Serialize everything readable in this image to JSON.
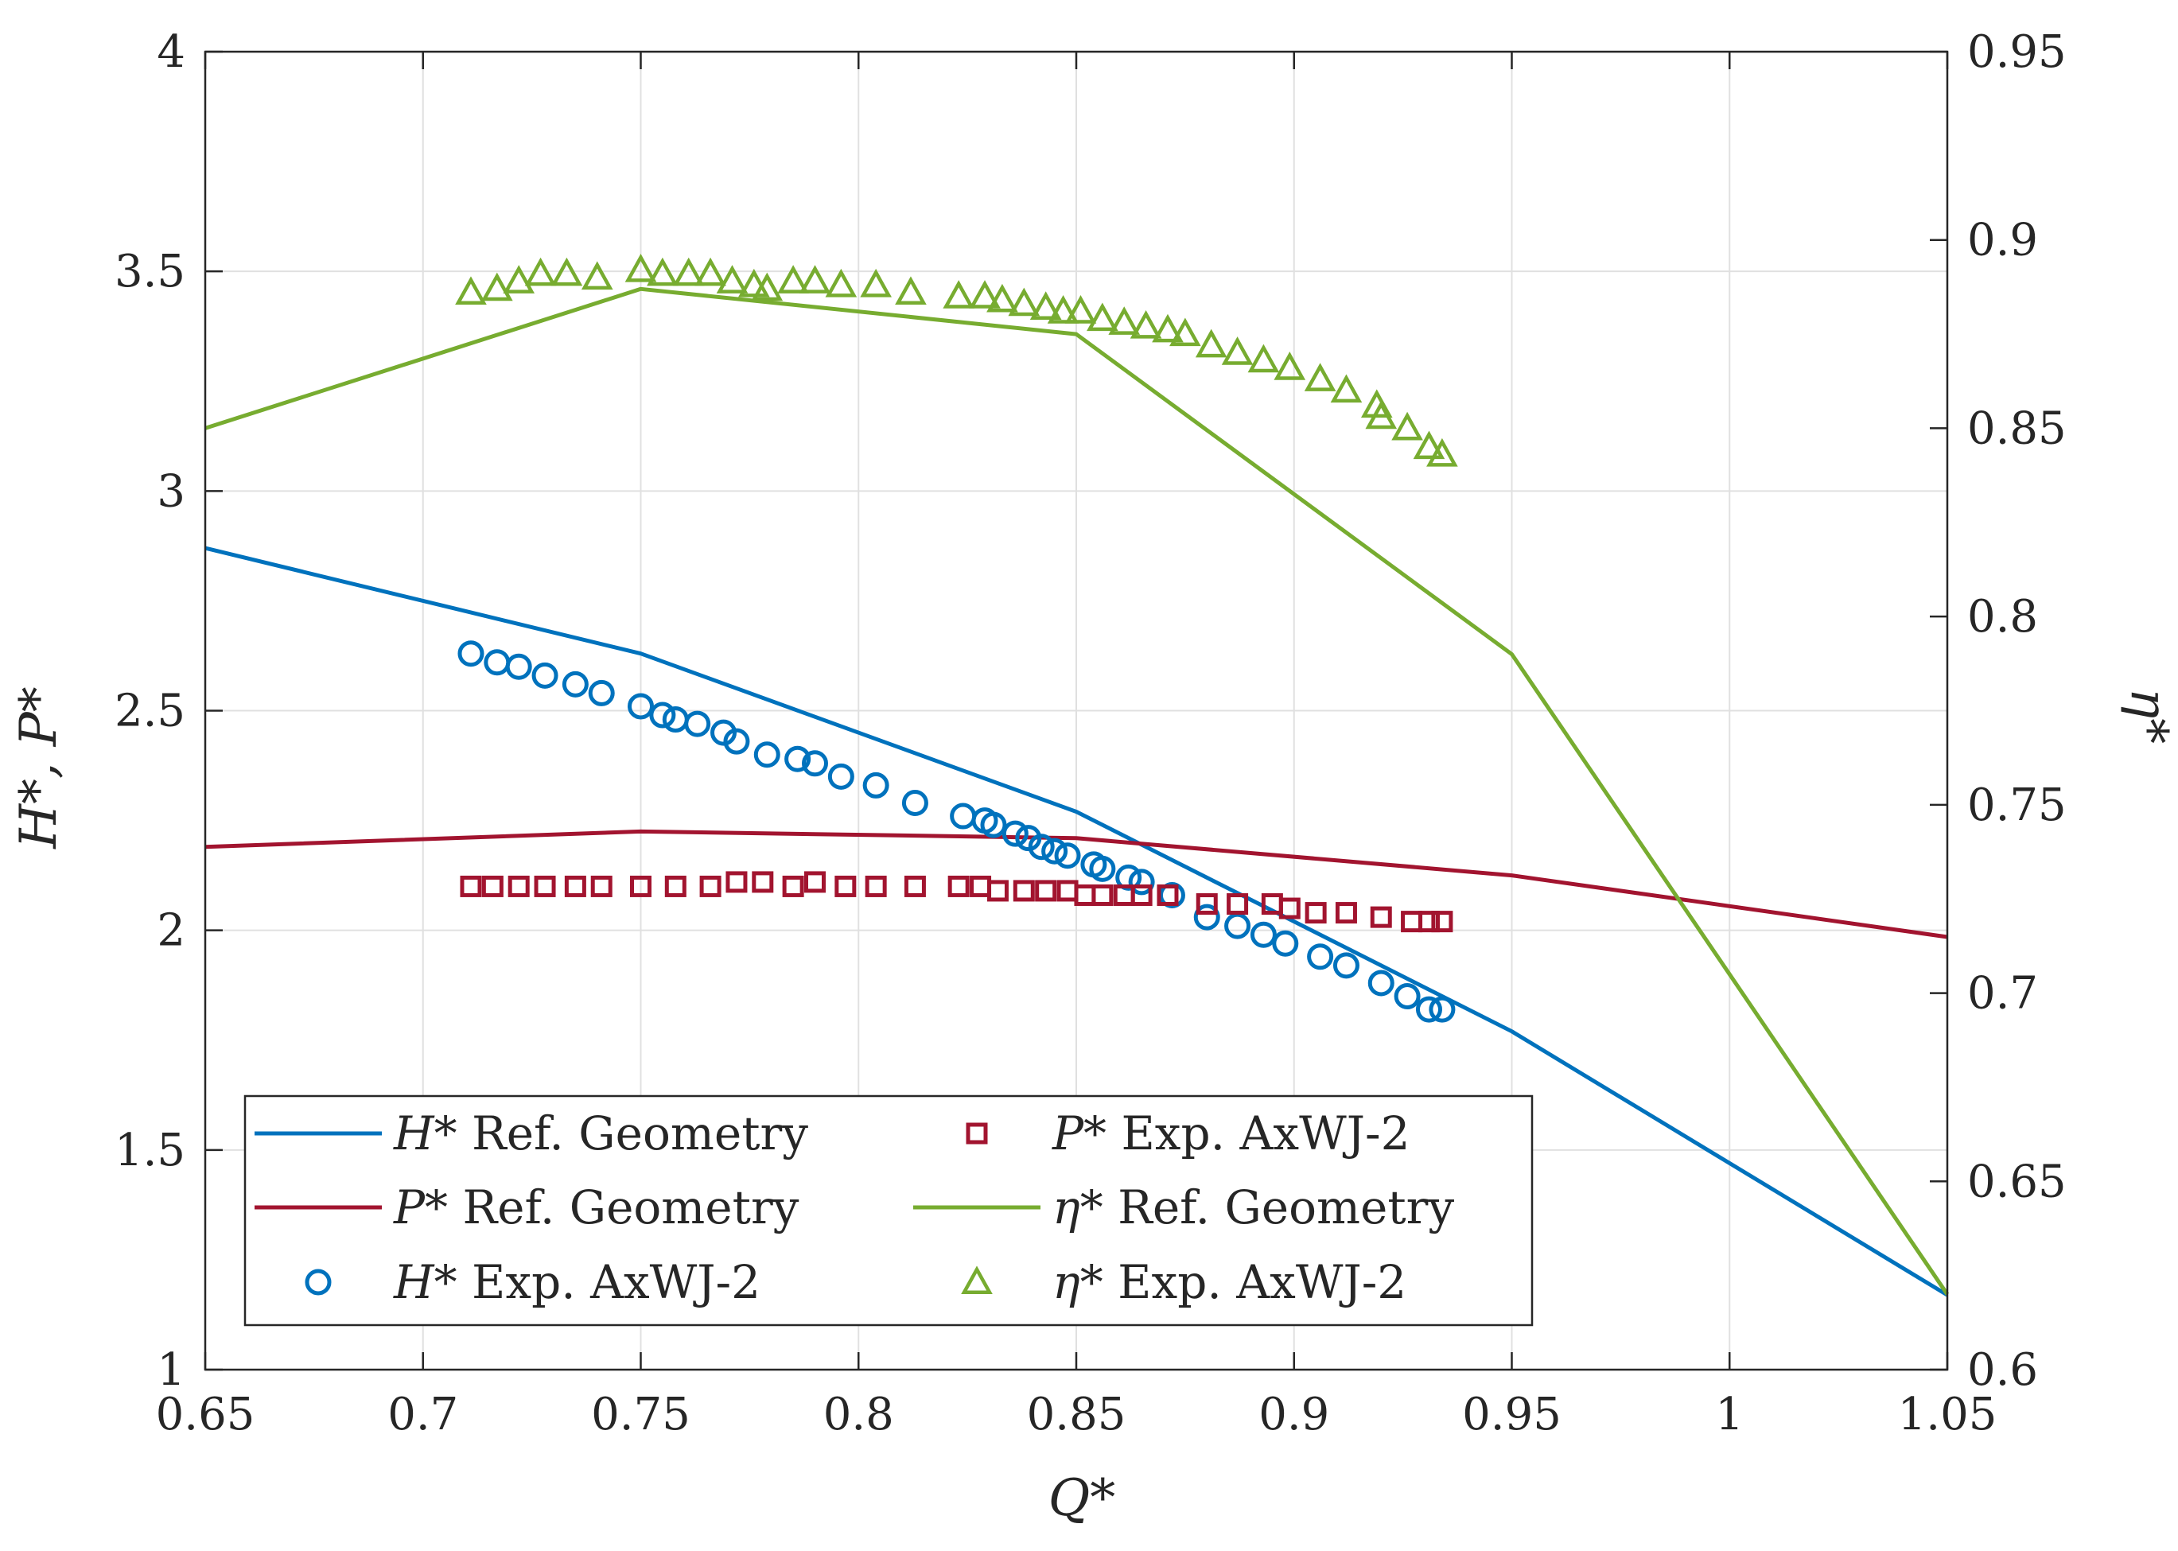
{
  "chart_data": {
    "type": "line+scatter",
    "xlabel": "Q*",
    "ylabel_left": "H*, P*",
    "ylabel_right": "η*",
    "xlim": [
      0.65,
      1.05
    ],
    "ylim_left": [
      1,
      4
    ],
    "ylim_right": [
      0.6,
      0.95
    ],
    "grid": true,
    "legend_position": "bottom-left",
    "x_ticks": [
      "0.65",
      "0.7",
      "0.75",
      "0.8",
      "0.85",
      "0.9",
      "0.95",
      "1",
      "1.05"
    ],
    "y_ticks_left": [
      "1",
      "1.5",
      "2",
      "2.5",
      "3",
      "3.5",
      "4"
    ],
    "y_ticks_right": [
      "0.6",
      "0.65",
      "0.7",
      "0.75",
      "0.8",
      "0.85",
      "0.9",
      "0.95"
    ],
    "colors": {
      "blue": "#0072BD",
      "red": "#A2142F",
      "green": "#77AC30",
      "axis": "#262626",
      "grid": "#e0e0e0"
    },
    "series": [
      {
        "name": "H* Ref. Geometry",
        "sym": "H*",
        "text": " Ref.  Geometry",
        "type": "line",
        "axis": "left",
        "color": "#0072BD",
        "x": [
          0.65,
          0.75,
          0.85,
          0.95,
          1.05
        ],
        "y": [
          2.87,
          2.63,
          2.27,
          1.77,
          1.17
        ]
      },
      {
        "name": "P* Ref. Geometry",
        "sym": "P*",
        "text": " Ref.  Geometry",
        "type": "line",
        "axis": "left",
        "color": "#A2142F",
        "x": [
          0.65,
          0.75,
          0.85,
          0.95,
          1.05
        ],
        "y": [
          2.19,
          2.225,
          2.21,
          2.125,
          1.985
        ]
      },
      {
        "name": "η* Ref. Geometry",
        "sym": "η*",
        "text": " Ref.  Geometry",
        "type": "line",
        "axis": "right",
        "color": "#77AC30",
        "x": [
          0.65,
          0.75,
          0.85,
          0.95,
          1.05
        ],
        "y": [
          0.85,
          0.887,
          0.875,
          0.79,
          0.62
        ]
      },
      {
        "name": "H* Exp. AxWJ-2",
        "sym": "H*",
        "text": " Exp.  AxWJ-2",
        "type": "scatter",
        "marker": "circle",
        "axis": "left",
        "color": "#0072BD",
        "x": [
          0.711,
          0.717,
          0.722,
          0.728,
          0.735,
          0.741,
          0.75,
          0.755,
          0.758,
          0.763,
          0.769,
          0.772,
          0.779,
          0.786,
          0.79,
          0.796,
          0.804,
          0.813,
          0.824,
          0.829,
          0.831,
          0.836,
          0.839,
          0.842,
          0.845,
          0.848,
          0.854,
          0.856,
          0.862,
          0.865,
          0.872,
          0.88,
          0.887,
          0.893,
          0.898,
          0.906,
          0.912,
          0.92,
          0.926,
          0.931,
          0.934
        ],
        "y": [
          2.63,
          2.61,
          2.6,
          2.58,
          2.56,
          2.54,
          2.51,
          2.49,
          2.48,
          2.47,
          2.45,
          2.43,
          2.4,
          2.39,
          2.38,
          2.35,
          2.33,
          2.29,
          2.26,
          2.25,
          2.24,
          2.22,
          2.21,
          2.19,
          2.18,
          2.17,
          2.15,
          2.14,
          2.12,
          2.11,
          2.08,
          2.03,
          2.01,
          1.99,
          1.97,
          1.94,
          1.92,
          1.88,
          1.85,
          1.82,
          1.82
        ]
      },
      {
        "name": "P* Exp. AxWJ-2",
        "sym": "P*",
        "text": " Exp.  AxWJ-2",
        "type": "scatter",
        "marker": "square",
        "axis": "left",
        "color": "#A2142F",
        "x": [
          0.711,
          0.716,
          0.722,
          0.728,
          0.735,
          0.741,
          0.75,
          0.758,
          0.766,
          0.772,
          0.778,
          0.785,
          0.79,
          0.797,
          0.804,
          0.813,
          0.823,
          0.828,
          0.832,
          0.838,
          0.843,
          0.848,
          0.852,
          0.856,
          0.861,
          0.865,
          0.871,
          0.88,
          0.887,
          0.895,
          0.899,
          0.905,
          0.912,
          0.92,
          0.927,
          0.931,
          0.934
        ],
        "y": [
          2.1,
          2.1,
          2.1,
          2.1,
          2.1,
          2.1,
          2.1,
          2.1,
          2.1,
          2.11,
          2.11,
          2.1,
          2.11,
          2.1,
          2.1,
          2.1,
          2.1,
          2.1,
          2.09,
          2.09,
          2.09,
          2.09,
          2.08,
          2.08,
          2.08,
          2.08,
          2.08,
          2.06,
          2.06,
          2.06,
          2.05,
          2.04,
          2.04,
          2.03,
          2.02,
          2.02,
          2.02
        ]
      },
      {
        "name": "η* Exp. AxWJ-2",
        "sym": "η*",
        "text": " Exp.  AxWJ-2",
        "type": "scatter",
        "marker": "triangle",
        "axis": "right",
        "color": "#77AC30",
        "x": [
          0.711,
          0.717,
          0.722,
          0.727,
          0.733,
          0.74,
          0.75,
          0.755,
          0.761,
          0.766,
          0.771,
          0.776,
          0.779,
          0.785,
          0.79,
          0.796,
          0.804,
          0.812,
          0.823,
          0.829,
          0.833,
          0.838,
          0.843,
          0.847,
          0.851,
          0.856,
          0.861,
          0.866,
          0.871,
          0.875,
          0.881,
          0.887,
          0.893,
          0.899,
          0.906,
          0.912,
          0.919,
          0.92,
          0.926,
          0.931,
          0.934
        ],
        "y": [
          0.886,
          0.887,
          0.889,
          0.891,
          0.891,
          0.89,
          0.892,
          0.891,
          0.891,
          0.891,
          0.889,
          0.888,
          0.887,
          0.889,
          0.889,
          0.888,
          0.888,
          0.886,
          0.885,
          0.885,
          0.884,
          0.883,
          0.882,
          0.881,
          0.881,
          0.879,
          0.878,
          0.877,
          0.876,
          0.875,
          0.872,
          0.87,
          0.868,
          0.866,
          0.863,
          0.86,
          0.856,
          0.853,
          0.85,
          0.845,
          0.843
        ]
      }
    ]
  }
}
